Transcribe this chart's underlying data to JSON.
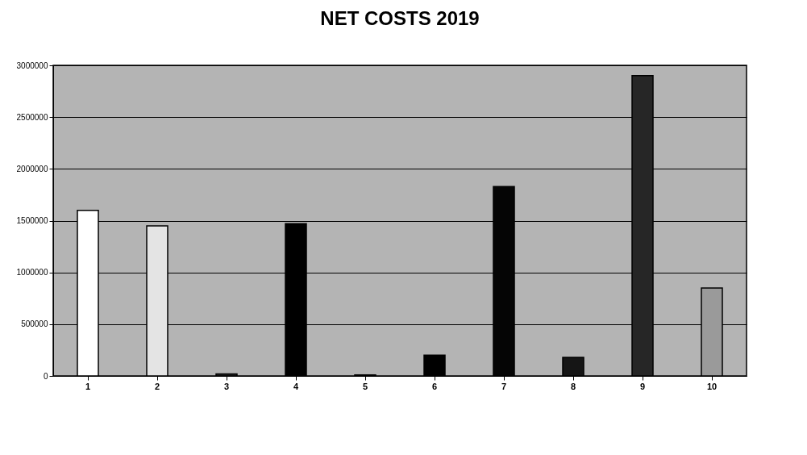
{
  "chart_data": {
    "type": "bar",
    "title": "NET COSTS 2019",
    "categories": [
      "1",
      "2",
      "3",
      "4",
      "5",
      "6",
      "7",
      "8",
      "9",
      "10"
    ],
    "values": [
      1600000,
      1450000,
      20000,
      1470000,
      10000,
      200000,
      1830000,
      180000,
      2900000,
      850000
    ],
    "colors": [
      "#ffffff",
      "#e4e4e4",
      "#202020",
      "#000000",
      "#202020",
      "#000000",
      "#050505",
      "#151515",
      "#262626",
      "#9a9a9a"
    ],
    "ylim": [
      0,
      3000000
    ],
    "yticks": [
      0,
      500000,
      1000000,
      1500000,
      2000000,
      2500000,
      3000000
    ],
    "grid": "y"
  }
}
